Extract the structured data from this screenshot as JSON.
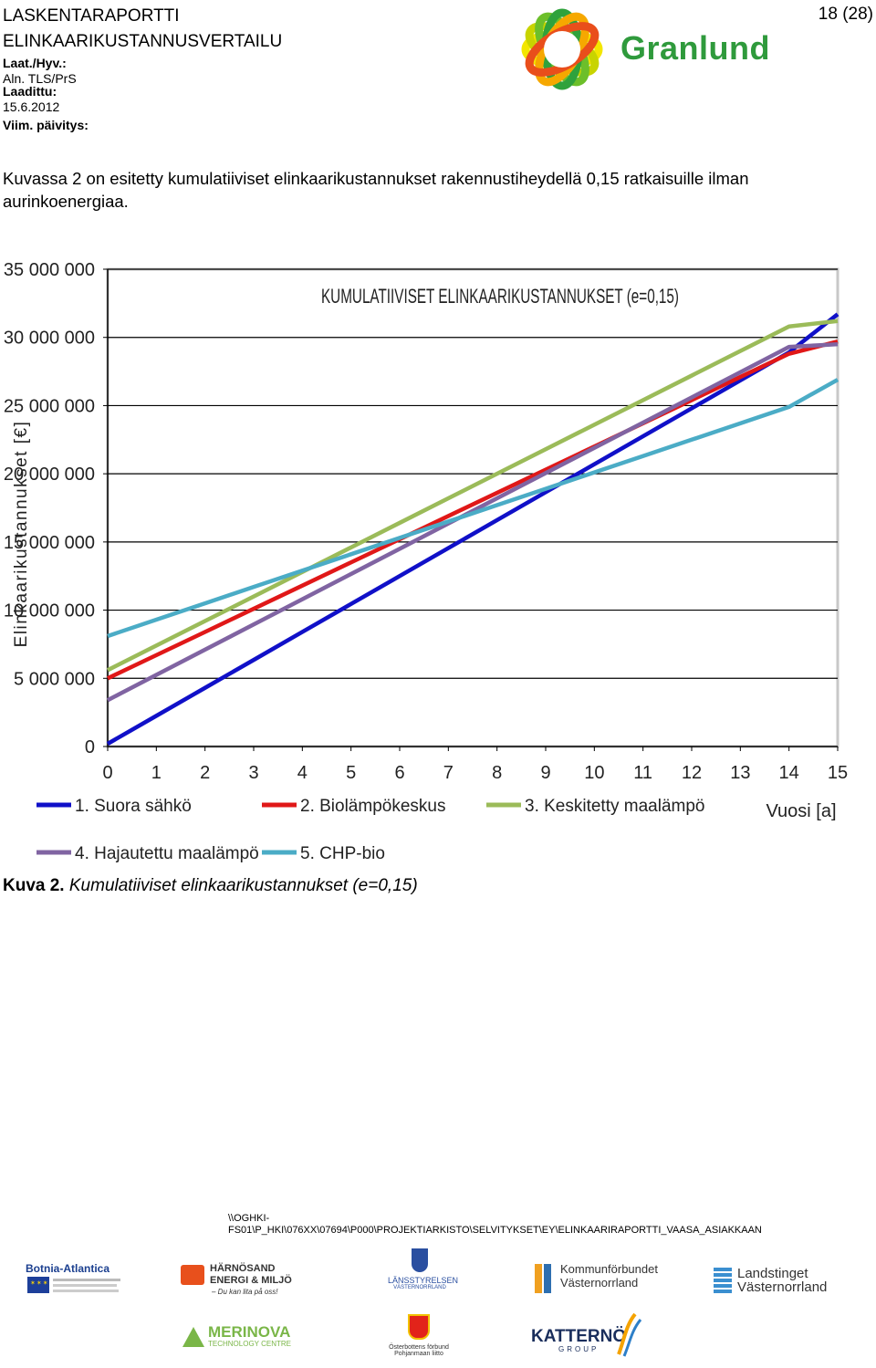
{
  "header": {
    "title1": "LASKENTARAPORTTI",
    "title2": "ELINKAARIKUSTANNUSVERTAILU",
    "approved_label": "Laat./Hyv.:",
    "authors": "Aln. TLS/PrS",
    "drafted_label": "Laadittu:",
    "date": "15.6.2012",
    "updated_label": "Viim. päivitys:",
    "page": "18 (28)",
    "brand": "Granlund",
    "brand_color": "#2f9a3c"
  },
  "body": {
    "paragraph": "Kuvassa 2 on esitetty kumulatiiviset elinkaarikustannukset rakennustiheydellä 0,15 ratkaisuille ilman aurinkoenergiaa."
  },
  "chart_data": {
    "type": "line",
    "title": "KUMULATIIVISET ELINKAARIKUSTANNUKSET (e=0,15)",
    "xlabel": "Vuosi [a]",
    "ylabel": "Elinkaarikustannukset [€]",
    "x": [
      0,
      1,
      2,
      3,
      4,
      5,
      6,
      7,
      8,
      9,
      10,
      11,
      12,
      13,
      14,
      15
    ],
    "x_tick_labels": [
      "0",
      "1",
      "2",
      "3",
      "4",
      "5",
      "6",
      "7",
      "8",
      "9",
      "10",
      "11",
      "12",
      "13",
      "14",
      "15"
    ],
    "y_tick_values": [
      0,
      5000000,
      10000000,
      15000000,
      20000000,
      25000000,
      30000000,
      35000000
    ],
    "y_tick_labels": [
      "0",
      "5 000 000",
      "10 000 000",
      "15 000 000",
      "20 000 000",
      "25 000 000",
      "30 000 000",
      "35 000 000"
    ],
    "xlim": [
      0,
      15
    ],
    "ylim": [
      0,
      35000000
    ],
    "grid": "horizontal",
    "legend_position": "bottom",
    "series": [
      {
        "name": "1. Suora sähkö",
        "color": "#1010c8",
        "values": [
          200000,
          2250000,
          4300000,
          6350000,
          8400000,
          10450000,
          12500000,
          14550000,
          16600000,
          18650000,
          20700000,
          22750000,
          24800000,
          26850000,
          28900000,
          31700000
        ]
      },
      {
        "name": "2. Biolämpökeskus",
        "color": "#e01818",
        "values": [
          5000000,
          6700000,
          8400000,
          10100000,
          11800000,
          13500000,
          15200000,
          16900000,
          18600000,
          20300000,
          22000000,
          23700000,
          25400000,
          27100000,
          28800000,
          29700000
        ]
      },
      {
        "name": "3. Keskitetty maalämpö",
        "color": "#9bbb59",
        "values": [
          5600000,
          7400000,
          9200000,
          11000000,
          12800000,
          14600000,
          16400000,
          18200000,
          20000000,
          21800000,
          23600000,
          25400000,
          27200000,
          29000000,
          30800000,
          31200000
        ]
      },
      {
        "name": "4. Hajautettu maalämpö",
        "color": "#8064a2",
        "values": [
          3400000,
          5250000,
          7100000,
          8950000,
          10800000,
          12650000,
          14500000,
          16350000,
          18200000,
          20050000,
          21900000,
          23750000,
          25600000,
          27450000,
          29300000,
          29500000
        ]
      },
      {
        "name": "5. CHP-bio",
        "color": "#4bacc6",
        "values": [
          8100000,
          9300000,
          10500000,
          11700000,
          12900000,
          14100000,
          15300000,
          16500000,
          17700000,
          18900000,
          20100000,
          21300000,
          22500000,
          23700000,
          24900000,
          26900000
        ]
      }
    ]
  },
  "caption": {
    "label": "Kuva 2.",
    "text": "Kumulatiiviset elinkaarikustannukset (e=0,15)"
  },
  "footer": {
    "path_line1": "\\\\OGHKI-",
    "path_line2": "FS01\\P_HKI\\076XX\\07694\\P000\\PROJEKTIARKISTO\\SELVITYKSET\\EY\\ELINKAARIRAPORTTI_VAASA_ASIAKKAAN",
    "logos": {
      "botnia": "Botnia-Atlantica",
      "harnosand_1": "HÄRNÖSAND",
      "harnosand_2": "ENERGI & MILJÖ",
      "harnosand_3": "– Du kan lita på oss!",
      "lansstyrelsen_1": "LÄNSSTYRELSEN",
      "lansstyrelsen_2": "VÄSTERNORRLAND",
      "kommun_1": "Kommunförbundet",
      "kommun_2": "Västernorrland",
      "landsting_1": "Landstinget",
      "landsting_2": "Västernorrland",
      "merinova_1": "MERINOVA",
      "merinova_2": "TECHNOLOGY CENTRE",
      "osterbotten_1": "Österbottens förbund",
      "osterbotten_2": "Pohjanmaan liitto",
      "katterno_1": "KATTERNÖ",
      "katterno_2": "GROUP"
    }
  }
}
